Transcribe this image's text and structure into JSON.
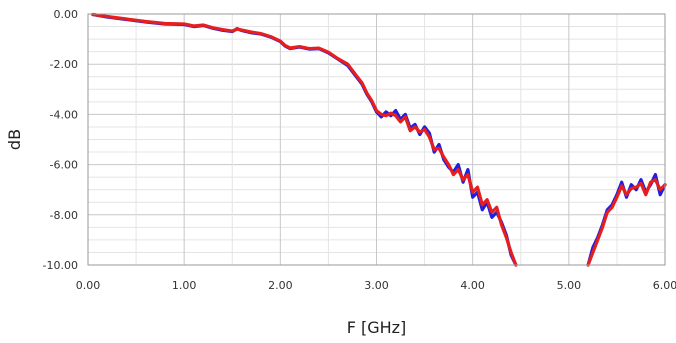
{
  "chart_data": {
    "type": "line",
    "title": "",
    "xlabel": "F [GHz]",
    "ylabel": "dB",
    "xlim": [
      0,
      6
    ],
    "ylim": [
      -10,
      0
    ],
    "x_ticks": [
      "0.00",
      "1.00",
      "2.00",
      "3.00",
      "4.00",
      "5.00",
      "6.00"
    ],
    "y_ticks": [
      "0.00",
      "-2.00",
      "-4.00",
      "-6.00",
      "-8.00",
      "-10.00"
    ],
    "grid": true,
    "series": [
      {
        "color": "#1f1fe0",
        "segments": [
          [
            [
              0.05,
              -0.02
            ],
            [
              0.2,
              -0.12
            ],
            [
              0.4,
              -0.22
            ],
            [
              0.6,
              -0.32
            ],
            [
              0.8,
              -0.4
            ],
            [
              1.0,
              -0.42
            ],
            [
              1.1,
              -0.5
            ],
            [
              1.2,
              -0.46
            ],
            [
              1.3,
              -0.57
            ],
            [
              1.4,
              -0.65
            ],
            [
              1.5,
              -0.7
            ],
            [
              1.55,
              -0.58
            ],
            [
              1.6,
              -0.66
            ],
            [
              1.7,
              -0.75
            ],
            [
              1.8,
              -0.8
            ],
            [
              1.9,
              -0.92
            ],
            [
              2.0,
              -1.1
            ],
            [
              2.05,
              -1.28
            ],
            [
              2.1,
              -1.38
            ],
            [
              2.2,
              -1.32
            ],
            [
              2.3,
              -1.4
            ],
            [
              2.4,
              -1.38
            ],
            [
              2.5,
              -1.55
            ],
            [
              2.6,
              -1.8
            ],
            [
              2.7,
              -2.05
            ],
            [
              2.8,
              -2.55
            ],
            [
              2.85,
              -2.8
            ],
            [
              2.9,
              -3.2
            ],
            [
              2.95,
              -3.5
            ],
            [
              3.0,
              -3.9
            ],
            [
              3.05,
              -4.1
            ],
            [
              3.1,
              -3.9
            ],
            [
              3.15,
              -4.05
            ],
            [
              3.2,
              -3.85
            ],
            [
              3.25,
              -4.2
            ],
            [
              3.3,
              -4.0
            ],
            [
              3.35,
              -4.55
            ],
            [
              3.4,
              -4.4
            ],
            [
              3.45,
              -4.8
            ],
            [
              3.5,
              -4.5
            ],
            [
              3.55,
              -4.75
            ],
            [
              3.6,
              -5.5
            ],
            [
              3.65,
              -5.2
            ],
            [
              3.7,
              -5.8
            ],
            [
              3.75,
              -6.1
            ],
            [
              3.8,
              -6.3
            ],
            [
              3.85,
              -6.0
            ],
            [
              3.9,
              -6.7
            ],
            [
              3.95,
              -6.2
            ],
            [
              4.0,
              -7.3
            ],
            [
              4.05,
              -7.1
            ],
            [
              4.1,
              -7.8
            ],
            [
              4.15,
              -7.5
            ],
            [
              4.2,
              -8.1
            ],
            [
              4.25,
              -7.9
            ],
            [
              4.3,
              -8.3
            ],
            [
              4.35,
              -8.8
            ],
            [
              4.4,
              -9.6
            ],
            [
              4.45,
              -10.0
            ]
          ],
          [
            [
              5.2,
              -10.0
            ],
            [
              5.25,
              -9.3
            ],
            [
              5.3,
              -8.9
            ],
            [
              5.35,
              -8.4
            ],
            [
              5.4,
              -7.8
            ],
            [
              5.45,
              -7.6
            ],
            [
              5.5,
              -7.2
            ],
            [
              5.55,
              -6.7
            ],
            [
              5.6,
              -7.3
            ],
            [
              5.65,
              -6.8
            ],
            [
              5.7,
              -7.0
            ],
            [
              5.75,
              -6.6
            ],
            [
              5.8,
              -7.1
            ],
            [
              5.85,
              -6.8
            ],
            [
              5.9,
              -6.4
            ],
            [
              5.95,
              -7.2
            ],
            [
              6.0,
              -6.8
            ]
          ]
        ]
      },
      {
        "color": "#e61e1e",
        "segments": [
          [
            [
              0.05,
              -0.02
            ],
            [
              0.2,
              -0.1
            ],
            [
              0.4,
              -0.2
            ],
            [
              0.6,
              -0.3
            ],
            [
              0.8,
              -0.38
            ],
            [
              1.0,
              -0.4
            ],
            [
              1.1,
              -0.48
            ],
            [
              1.2,
              -0.44
            ],
            [
              1.3,
              -0.55
            ],
            [
              1.4,
              -0.62
            ],
            [
              1.5,
              -0.68
            ],
            [
              1.55,
              -0.6
            ],
            [
              1.6,
              -0.64
            ],
            [
              1.7,
              -0.72
            ],
            [
              1.8,
              -0.78
            ],
            [
              1.9,
              -0.9
            ],
            [
              2.0,
              -1.08
            ],
            [
              2.05,
              -1.25
            ],
            [
              2.1,
              -1.35
            ],
            [
              2.2,
              -1.3
            ],
            [
              2.3,
              -1.38
            ],
            [
              2.4,
              -1.36
            ],
            [
              2.5,
              -1.52
            ],
            [
              2.6,
              -1.78
            ],
            [
              2.7,
              -2.0
            ],
            [
              2.8,
              -2.5
            ],
            [
              2.85,
              -2.75
            ],
            [
              2.9,
              -3.15
            ],
            [
              2.95,
              -3.45
            ],
            [
              3.0,
              -3.85
            ],
            [
              3.05,
              -4.0
            ],
            [
              3.1,
              -4.05
            ],
            [
              3.15,
              -3.95
            ],
            [
              3.2,
              -4.05
            ],
            [
              3.25,
              -4.3
            ],
            [
              3.3,
              -4.1
            ],
            [
              3.35,
              -4.65
            ],
            [
              3.4,
              -4.5
            ],
            [
              3.45,
              -4.7
            ],
            [
              3.5,
              -4.6
            ],
            [
              3.55,
              -4.9
            ],
            [
              3.6,
              -5.4
            ],
            [
              3.65,
              -5.35
            ],
            [
              3.7,
              -5.7
            ],
            [
              3.75,
              -6.0
            ],
            [
              3.8,
              -6.4
            ],
            [
              3.85,
              -6.2
            ],
            [
              3.9,
              -6.6
            ],
            [
              3.95,
              -6.4
            ],
            [
              4.0,
              -7.1
            ],
            [
              4.05,
              -6.9
            ],
            [
              4.1,
              -7.6
            ],
            [
              4.15,
              -7.4
            ],
            [
              4.2,
              -7.9
            ],
            [
              4.25,
              -7.7
            ],
            [
              4.3,
              -8.4
            ],
            [
              4.35,
              -8.9
            ],
            [
              4.4,
              -9.5
            ],
            [
              4.45,
              -10.0
            ]
          ],
          [
            [
              5.2,
              -10.0
            ],
            [
              5.25,
              -9.5
            ],
            [
              5.3,
              -9.0
            ],
            [
              5.35,
              -8.5
            ],
            [
              5.4,
              -7.9
            ],
            [
              5.45,
              -7.7
            ],
            [
              5.5,
              -7.3
            ],
            [
              5.55,
              -6.85
            ],
            [
              5.6,
              -7.2
            ],
            [
              5.65,
              -6.95
            ],
            [
              5.7,
              -6.9
            ],
            [
              5.75,
              -6.75
            ],
            [
              5.8,
              -7.2
            ],
            [
              5.85,
              -6.7
            ],
            [
              5.9,
              -6.6
            ],
            [
              5.95,
              -7.0
            ],
            [
              6.0,
              -6.8
            ]
          ]
        ]
      }
    ]
  }
}
